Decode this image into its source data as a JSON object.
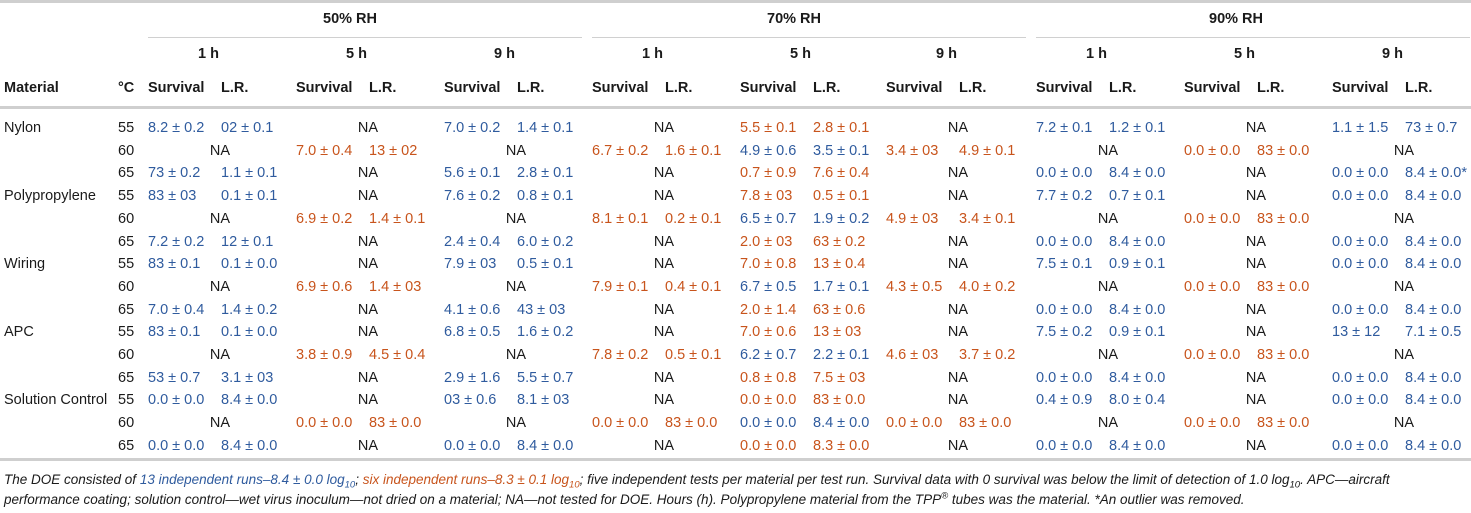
{
  "colors": {
    "group_a": "#2f5b9e",
    "group_b": "#c8541c",
    "text": "#1a1a1a",
    "rule": "#cfcfcf"
  },
  "header": {
    "material": "Material",
    "temp": "°C",
    "rh_groups": [
      "50% RH",
      "70% RH",
      "90% RH"
    ],
    "hours": [
      "1 h",
      "5 h",
      "9 h"
    ],
    "survival": "Survival",
    "lr": "L.R."
  },
  "rows": [
    {
      "material": "Nylon",
      "temp": "55",
      "cells": [
        {
          "c": "b",
          "v": [
            "8.2 ± 0.2",
            "02 ± 0.1"
          ]
        },
        "NA",
        {
          "c": "b",
          "v": [
            "7.0 ± 0.2",
            "1.4 ± 0.1"
          ]
        },
        "NA",
        {
          "c": "o",
          "v": [
            "5.5 ± 0.1",
            "2.8 ± 0.1"
          ]
        },
        "NA",
        {
          "c": "b",
          "v": [
            "7.2 ± 0.1",
            "1.2 ± 0.1"
          ]
        },
        "NA",
        {
          "c": "b",
          "v": [
            "1.1 ± 1.5",
            "73 ± 0.7"
          ]
        }
      ]
    },
    {
      "material": "",
      "temp": "60",
      "cells": [
        "NA",
        {
          "c": "o",
          "v": [
            "7.0 ± 0.4",
            "13 ± 02"
          ]
        },
        "NA",
        {
          "c": "o",
          "v": [
            "6.7 ± 0.2",
            "1.6 ± 0.1"
          ]
        },
        {
          "c": "b",
          "v": [
            "4.9 ± 0.6",
            "3.5 ± 0.1"
          ]
        },
        {
          "c": "o",
          "v": [
            "3.4 ± 03",
            "4.9 ± 0.1"
          ]
        },
        "NA",
        {
          "c": "o",
          "v": [
            "0.0 ± 0.0",
            "83 ± 0.0"
          ]
        },
        "NA"
      ]
    },
    {
      "material": "",
      "temp": "65",
      "cells": [
        {
          "c": "b",
          "v": [
            "73 ± 0.2",
            "1.1 ± 0.1"
          ]
        },
        "NA",
        {
          "c": "b",
          "v": [
            "5.6 ± 0.1",
            "2.8 ± 0.1"
          ]
        },
        "NA",
        {
          "c": "o",
          "v": [
            "0.7 ± 0.9",
            "7.6 ± 0.4"
          ]
        },
        "NA",
        {
          "c": "b",
          "v": [
            "0.0 ± 0.0",
            "8.4 ± 0.0"
          ]
        },
        "NA",
        {
          "c": "b",
          "v": [
            "0.0 ± 0.0",
            "8.4 ± 0.0*"
          ]
        }
      ]
    },
    {
      "material": "Polypropylene",
      "temp": "55",
      "cells": [
        {
          "c": "b",
          "v": [
            "83 ± 03",
            "0.1 ± 0.1"
          ]
        },
        "NA",
        {
          "c": "b",
          "v": [
            "7.6 ± 0.2",
            "0.8 ± 0.1"
          ]
        },
        "NA",
        {
          "c": "o",
          "v": [
            "7.8 ± 03",
            "0.5 ± 0.1"
          ]
        },
        "NA",
        {
          "c": "b",
          "v": [
            "7.7 ± 0.2",
            "0.7 ± 0.1"
          ]
        },
        "NA",
        {
          "c": "b",
          "v": [
            "0.0 ± 0.0",
            "8.4 ± 0.0"
          ]
        }
      ]
    },
    {
      "material": "",
      "temp": "60",
      "cells": [
        "NA",
        {
          "c": "o",
          "v": [
            "6.9 ± 0.2",
            "1.4 ± 0.1"
          ]
        },
        "NA",
        {
          "c": "o",
          "v": [
            "8.1 ± 0.1",
            "0.2 ± 0.1"
          ]
        },
        {
          "c": "b",
          "v": [
            "6.5 ± 0.7",
            "1.9 ± 0.2"
          ]
        },
        {
          "c": "o",
          "v": [
            "4.9 ± 03",
            "3.4 ± 0.1"
          ]
        },
        "NA",
        {
          "c": "o",
          "v": [
            "0.0 ± 0.0",
            "83 ± 0.0"
          ]
        },
        "NA"
      ]
    },
    {
      "material": "",
      "temp": "65",
      "cells": [
        {
          "c": "b",
          "v": [
            "7.2 ± 0.2",
            "12 ± 0.1"
          ]
        },
        "NA",
        {
          "c": "b",
          "v": [
            "2.4 ± 0.4",
            "6.0 ± 0.2"
          ]
        },
        "NA",
        {
          "c": "o",
          "v": [
            "2.0 ± 03",
            "63 ± 0.2"
          ]
        },
        "NA",
        {
          "c": "b",
          "v": [
            "0.0 ± 0.0",
            "8.4 ± 0.0"
          ]
        },
        "NA",
        {
          "c": "b",
          "v": [
            "0.0 ± 0.0",
            "8.4 ± 0.0"
          ]
        }
      ]
    },
    {
      "material": "Wiring",
      "temp": "55",
      "cells": [
        {
          "c": "b",
          "v": [
            "83 ± 0.1",
            "0.1 ± 0.0"
          ]
        },
        "NA",
        {
          "c": "b",
          "v": [
            "7.9 ± 03",
            "0.5 ± 0.1"
          ]
        },
        "NA",
        {
          "c": "o",
          "v": [
            "7.0 ± 0.8",
            "13 ± 0.4"
          ]
        },
        "NA",
        {
          "c": "b",
          "v": [
            "7.5 ± 0.1",
            "0.9 ± 0.1"
          ]
        },
        "NA",
        {
          "c": "b",
          "v": [
            "0.0 ± 0.0",
            "8.4 ± 0.0"
          ]
        }
      ]
    },
    {
      "material": "",
      "temp": "60",
      "cells": [
        "NA",
        {
          "c": "o",
          "v": [
            "6.9 ± 0.6",
            "1.4 ± 03"
          ]
        },
        "NA",
        {
          "c": "o",
          "v": [
            "7.9 ± 0.1",
            "0.4 ± 0.1"
          ]
        },
        {
          "c": "b",
          "v": [
            "6.7 ± 0.5",
            "1.7 ± 0.1"
          ]
        },
        {
          "c": "o",
          "v": [
            "4.3 ± 0.5",
            "4.0 ± 0.2"
          ]
        },
        "NA",
        {
          "c": "o",
          "v": [
            "0.0 ± 0.0",
            "83 ± 0.0"
          ]
        },
        "NA"
      ]
    },
    {
      "material": "",
      "temp": "65",
      "cells": [
        {
          "c": "b",
          "v": [
            "7.0 ± 0.4",
            "1.4 ± 0.2"
          ]
        },
        "NA",
        {
          "c": "b",
          "v": [
            "4.1 ± 0.6",
            "43 ± 03"
          ]
        },
        "NA",
        {
          "c": "o",
          "v": [
            "2.0 ± 1.4",
            "63 ± 0.6"
          ]
        },
        "NA",
        {
          "c": "b",
          "v": [
            "0.0 ± 0.0",
            "8.4 ± 0.0"
          ]
        },
        "NA",
        {
          "c": "b",
          "v": [
            "0.0 ± 0.0",
            "8.4 ± 0.0"
          ]
        }
      ]
    },
    {
      "material": "APC",
      "temp": "55",
      "cells": [
        {
          "c": "b",
          "v": [
            "83 ± 0.1",
            "0.1 ± 0.0"
          ]
        },
        "NA",
        {
          "c": "b",
          "v": [
            "6.8 ± 0.5",
            "1.6 ± 0.2"
          ]
        },
        "NA",
        {
          "c": "o",
          "v": [
            "7.0 ± 0.6",
            "13 ± 03"
          ]
        },
        "NA",
        {
          "c": "b",
          "v": [
            "7.5 ± 0.2",
            "0.9 ± 0.1"
          ]
        },
        "NA",
        {
          "c": "b",
          "v": [
            "13 ± 12",
            "7.1 ± 0.5"
          ]
        }
      ]
    },
    {
      "material": "",
      "temp": "60",
      "cells": [
        "NA",
        {
          "c": "o",
          "v": [
            "3.8 ± 0.9",
            "4.5 ± 0.4"
          ]
        },
        "NA",
        {
          "c": "o",
          "v": [
            "7.8 ± 0.2",
            "0.5 ± 0.1"
          ]
        },
        {
          "c": "b",
          "v": [
            "6.2 ± 0.7",
            "2.2 ± 0.1"
          ]
        },
        {
          "c": "o",
          "v": [
            "4.6 ± 03",
            "3.7 ± 0.2"
          ]
        },
        "NA",
        {
          "c": "o",
          "v": [
            "0.0 ± 0.0",
            "83 ± 0.0"
          ]
        },
        "NA"
      ]
    },
    {
      "material": "",
      "temp": "65",
      "cells": [
        {
          "c": "b",
          "v": [
            "53 ± 0.7",
            "3.1 ± 03"
          ]
        },
        "NA",
        {
          "c": "b",
          "v": [
            "2.9 ± 1.6",
            "5.5 ± 0.7"
          ]
        },
        "NA",
        {
          "c": "o",
          "v": [
            "0.8 ± 0.8",
            "7.5 ± 03"
          ]
        },
        "NA",
        {
          "c": "b",
          "v": [
            "0.0 ± 0.0",
            "8.4 ± 0.0"
          ]
        },
        "NA",
        {
          "c": "b",
          "v": [
            "0.0 ± 0.0",
            "8.4 ± 0.0"
          ]
        }
      ]
    },
    {
      "material": "Solution Control",
      "temp": "55",
      "cells": [
        {
          "c": "b",
          "v": [
            "0.0 ± 0.0",
            "8.4 ± 0.0"
          ]
        },
        "NA",
        {
          "c": "b",
          "v": [
            "03 ± 0.6",
            "8.1 ± 03"
          ]
        },
        "NA",
        {
          "c": "o",
          "v": [
            "0.0 ± 0.0",
            "83 ± 0.0"
          ]
        },
        "NA",
        {
          "c": "b",
          "v": [
            "0.4 ± 0.9",
            "8.0 ± 0.4"
          ]
        },
        "NA",
        {
          "c": "b",
          "v": [
            "0.0 ± 0.0",
            "8.4 ± 0.0"
          ]
        }
      ]
    },
    {
      "material": "",
      "temp": "60",
      "cells": [
        "NA",
        {
          "c": "o",
          "v": [
            "0.0 ± 0.0",
            "83 ± 0.0"
          ]
        },
        "NA",
        {
          "c": "o",
          "v": [
            "0.0 ± 0.0",
            "83 ± 0.0"
          ]
        },
        {
          "c": "b",
          "v": [
            "0.0 ± 0.0",
            "8.4 ± 0.0"
          ]
        },
        {
          "c": "o",
          "v": [
            "0.0 ± 0.0",
            "83 ± 0.0"
          ]
        },
        "NA",
        {
          "c": "o",
          "v": [
            "0.0 ± 0.0",
            "83 ± 0.0"
          ]
        },
        "NA"
      ]
    },
    {
      "material": "",
      "temp": "65",
      "cells": [
        {
          "c": "b",
          "v": [
            "0.0 ± 0.0",
            "8.4 ± 0.0"
          ]
        },
        "NA",
        {
          "c": "b",
          "v": [
            "0.0 ± 0.0",
            "8.4 ± 0.0"
          ]
        },
        "NA",
        {
          "c": "o",
          "v": [
            "0.0 ± 0.0",
            "8.3 ± 0.0"
          ]
        },
        "NA",
        {
          "c": "b",
          "v": [
            "0.0 ± 0.0",
            "8.4 ± 0.0"
          ]
        },
        "NA",
        {
          "c": "b",
          "v": [
            "0.0 ± 0.0",
            "8.4 ± 0.0"
          ]
        }
      ]
    }
  ],
  "footnote": {
    "p1": "The DOE consisted of ",
    "blue": "13 independent runs–8.4 ± 0.0 log",
    "blue_sub": "10",
    "sep": "; ",
    "orange": "six independent runs–8.3 ± 0.1 log",
    "orange_sub": "10",
    "p2": "; five independent tests per material per test run. Survival data with 0 survival was below the limit of detection of 1.0 log",
    "p2_sub": "10",
    "p3": ". APC—aircraft performance coating; solution control—wet virus inoculum—not dried on a material; NA—not tested for DOE. Hours (h). Polypropylene material from the TPP",
    "reg": "®",
    "p4": " tubes was the material. *An outlier was removed."
  }
}
